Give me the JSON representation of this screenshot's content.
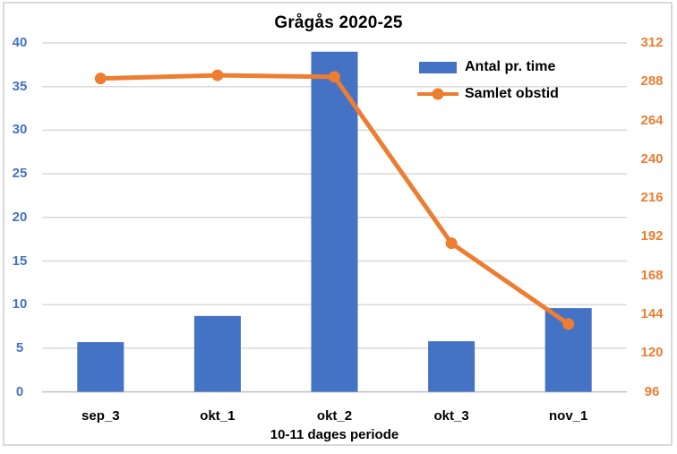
{
  "chart_data": {
    "type": "combo-bar-line",
    "title": "Grågås 2020-25",
    "xlabel": "10-11 dages periode",
    "categories": [
      "sep_3",
      "okt_1",
      "okt_2",
      "okt_3",
      "nov_1"
    ],
    "series": [
      {
        "name": "Antal pr. time",
        "type": "bar",
        "axis": "left",
        "color": "#4472C4",
        "values": [
          5.7,
          8.7,
          39,
          5.8,
          9.6
        ]
      },
      {
        "name": "Samlet obstid",
        "type": "line",
        "axis": "right",
        "color": "#ED7D31",
        "values": [
          290,
          292,
          291,
          188,
          138
        ]
      }
    ],
    "left_axis": {
      "min": 0,
      "max": 40,
      "step": 5,
      "ticks": [
        40,
        35,
        30,
        25,
        20,
        15,
        10,
        5,
        0
      ],
      "color": "#4472C4"
    },
    "right_axis": {
      "min": 96,
      "max": 312,
      "step": 24,
      "ticks": [
        312,
        288,
        264,
        240,
        216,
        192,
        168,
        144,
        120,
        96
      ],
      "color": "#ED7D31"
    },
    "grid": true,
    "legend_position": "top-right-inside",
    "colors": {
      "gridline": "#D9D9D9",
      "axis_line": "#C0C0C0",
      "chart_border": "#D9D9D9",
      "title_text": "#000000",
      "label_text": "#000000"
    }
  }
}
